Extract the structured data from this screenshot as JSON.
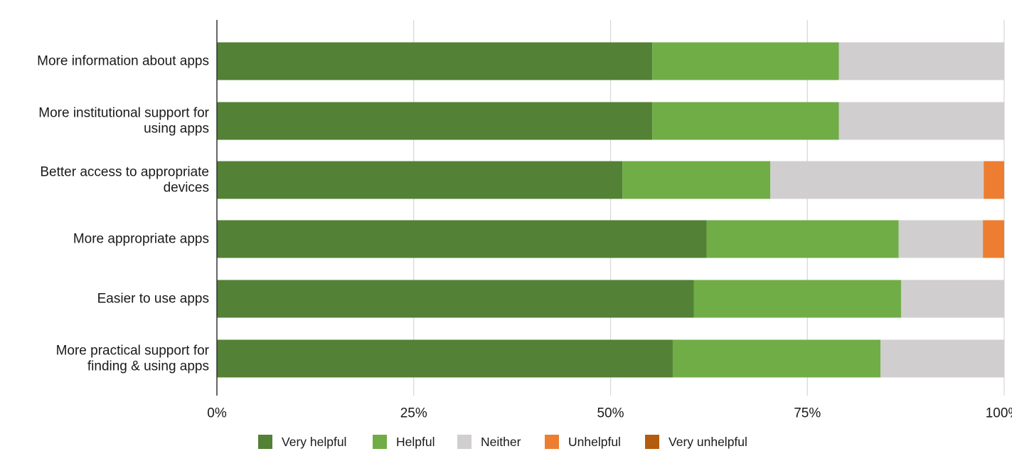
{
  "chart_data": {
    "type": "bar",
    "orientation": "horizontal",
    "stacked": true,
    "normalized": true,
    "title": "",
    "xlabel": "",
    "ylabel": "",
    "xlim": [
      0,
      100
    ],
    "grid": true,
    "legend_position": "bottom",
    "x_ticks": [
      {
        "value": 0,
        "label": "0%"
      },
      {
        "value": 25,
        "label": "25%"
      },
      {
        "value": 50,
        "label": "50%"
      },
      {
        "value": 75,
        "label": "75%"
      },
      {
        "value": 100,
        "label": "100%"
      }
    ],
    "categories": [
      [
        "More information about apps"
      ],
      [
        "More institutional support for",
        "using apps"
      ],
      [
        "Better access to appropriate",
        "devices"
      ],
      [
        "More appropriate apps"
      ],
      [
        "Easier to use apps"
      ],
      [
        "More practical support for",
        "finding & using apps"
      ]
    ],
    "series": [
      {
        "name": "Very helpful",
        "color": "#538135",
        "values": [
          55.3,
          55.3,
          51.5,
          62.2,
          60.6,
          57.9
        ]
      },
      {
        "name": "Helpful",
        "color": "#70ad47",
        "values": [
          23.7,
          23.7,
          18.8,
          24.4,
          26.3,
          26.4
        ]
      },
      {
        "name": "Neither",
        "color": "#d0cece",
        "values": [
          21.0,
          21.0,
          27.1,
          10.7,
          13.1,
          15.7
        ]
      },
      {
        "name": "Unhelpful",
        "color": "#ed7d31",
        "values": [
          0,
          0,
          2.6,
          2.7,
          0,
          0
        ]
      },
      {
        "name": "Very unhelpful",
        "color": "#b35c0f",
        "values": [
          0,
          0,
          0,
          0,
          0,
          0
        ]
      }
    ]
  }
}
